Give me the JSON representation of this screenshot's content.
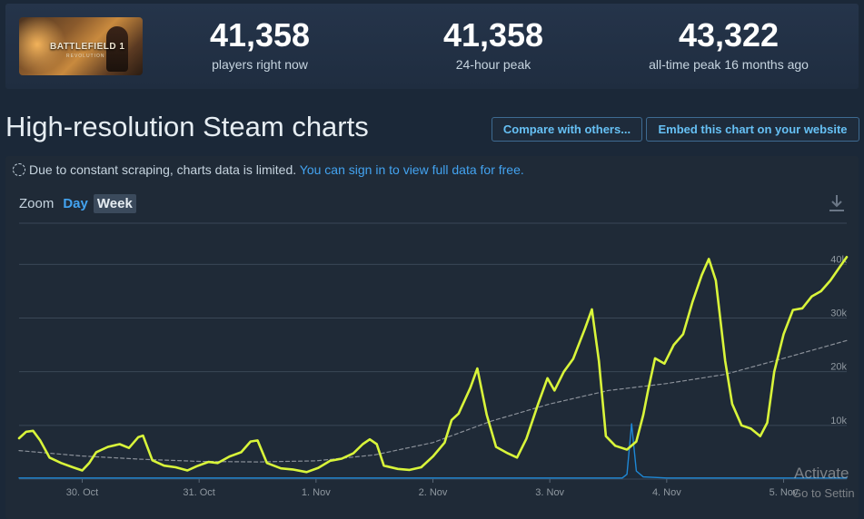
{
  "stats": {
    "thumbnail_logo": "BATTLEFIELD 1",
    "thumbnail_sub": "REVOLUTION",
    "current": {
      "value": "41,358",
      "label": "players right now"
    },
    "peak24": {
      "value": "41,358",
      "label": "24-hour peak"
    },
    "alltime": {
      "value": "43,322",
      "label": "all-time peak 16 months ago"
    }
  },
  "page_title": "High-resolution Steam charts",
  "buttons": {
    "compare": "Compare with others...",
    "embed": "Embed this chart on your website"
  },
  "notice": {
    "text": "Due to constant scraping, charts data is limited.",
    "link": "You can sign in to view full data for free."
  },
  "zoom": {
    "label": "Zoom",
    "day": "Day",
    "week": "Week"
  },
  "watermark": {
    "line1": "Activate",
    "line2": "Go to Settin"
  },
  "colors": {
    "players_line": "#d9f53a",
    "avg_line": "#8a9099",
    "spike_line": "#1e88d6",
    "accent": "#66c0f4"
  },
  "chart_data": {
    "type": "line",
    "ylim": [
      0,
      48000
    ],
    "yticks": [
      "10k",
      "20k",
      "30k",
      "40k"
    ],
    "ytick_values": [
      10000,
      20000,
      30000,
      40000
    ],
    "xticks": [
      "30. Oct",
      "31. Oct",
      "1. Nov",
      "2. Nov",
      "3. Nov",
      "4. Nov",
      "5. Nov"
    ],
    "xtick_days": [
      1,
      2,
      3,
      4,
      5,
      6,
      7
    ],
    "x_start_day": 0.46,
    "x_end_day": 7.54,
    "series": [
      {
        "key": "players",
        "points": [
          [
            0.46,
            7600
          ],
          [
            0.52,
            8800
          ],
          [
            0.58,
            9000
          ],
          [
            0.64,
            7200
          ],
          [
            0.72,
            4000
          ],
          [
            0.82,
            3000
          ],
          [
            0.92,
            2200
          ],
          [
            1.0,
            1600
          ],
          [
            1.06,
            3000
          ],
          [
            1.12,
            5000
          ],
          [
            1.22,
            6000
          ],
          [
            1.32,
            6500
          ],
          [
            1.4,
            5800
          ],
          [
            1.48,
            7800
          ],
          [
            1.52,
            8100
          ],
          [
            1.6,
            3500
          ],
          [
            1.7,
            2500
          ],
          [
            1.8,
            2200
          ],
          [
            1.9,
            1600
          ],
          [
            1.98,
            2400
          ],
          [
            2.08,
            3200
          ],
          [
            2.16,
            3000
          ],
          [
            2.26,
            4200
          ],
          [
            2.36,
            5000
          ],
          [
            2.44,
            7000
          ],
          [
            2.5,
            7200
          ],
          [
            2.58,
            3000
          ],
          [
            2.7,
            2000
          ],
          [
            2.8,
            1800
          ],
          [
            2.92,
            1300
          ],
          [
            3.02,
            2100
          ],
          [
            3.12,
            3400
          ],
          [
            3.22,
            3800
          ],
          [
            3.32,
            4800
          ],
          [
            3.4,
            6500
          ],
          [
            3.46,
            7400
          ],
          [
            3.52,
            6500
          ],
          [
            3.58,
            2500
          ],
          [
            3.7,
            1900
          ],
          [
            3.8,
            1700
          ],
          [
            3.9,
            2200
          ],
          [
            4.0,
            4200
          ],
          [
            4.1,
            6800
          ],
          [
            4.16,
            11000
          ],
          [
            4.22,
            12200
          ],
          [
            4.32,
            17000
          ],
          [
            4.38,
            20600
          ],
          [
            4.46,
            12000
          ],
          [
            4.54,
            6000
          ],
          [
            4.64,
            4800
          ],
          [
            4.72,
            4000
          ],
          [
            4.8,
            7500
          ],
          [
            4.9,
            14000
          ],
          [
            4.98,
            18800
          ],
          [
            5.04,
            16500
          ],
          [
            5.12,
            20000
          ],
          [
            5.2,
            22400
          ],
          [
            5.3,
            28000
          ],
          [
            5.36,
            31600
          ],
          [
            5.42,
            22000
          ],
          [
            5.48,
            8000
          ],
          [
            5.56,
            6200
          ],
          [
            5.66,
            5500
          ],
          [
            5.74,
            7000
          ],
          [
            5.8,
            12000
          ],
          [
            5.84,
            16500
          ],
          [
            5.9,
            22500
          ],
          [
            5.98,
            21500
          ],
          [
            6.06,
            25000
          ],
          [
            6.14,
            27000
          ],
          [
            6.22,
            33000
          ],
          [
            6.3,
            38000
          ],
          [
            6.36,
            41000
          ],
          [
            6.42,
            37000
          ],
          [
            6.5,
            22000
          ],
          [
            6.56,
            14000
          ],
          [
            6.64,
            10000
          ],
          [
            6.72,
            9400
          ],
          [
            6.8,
            8000
          ],
          [
            6.86,
            10500
          ],
          [
            6.92,
            20000
          ],
          [
            7.0,
            27000
          ],
          [
            7.08,
            31500
          ],
          [
            7.16,
            31800
          ],
          [
            7.24,
            34000
          ],
          [
            7.32,
            35000
          ],
          [
            7.4,
            37000
          ],
          [
            7.48,
            39500
          ],
          [
            7.54,
            41358
          ]
        ]
      },
      {
        "key": "average",
        "points": [
          [
            0.46,
            5300
          ],
          [
            1.0,
            4300
          ],
          [
            1.5,
            3700
          ],
          [
            2.0,
            3300
          ],
          [
            2.5,
            3200
          ],
          [
            3.0,
            3400
          ],
          [
            3.5,
            4500
          ],
          [
            4.0,
            6800
          ],
          [
            4.5,
            10800
          ],
          [
            5.0,
            14000
          ],
          [
            5.5,
            16500
          ],
          [
            6.0,
            17800
          ],
          [
            6.5,
            19500
          ],
          [
            7.0,
            22500
          ],
          [
            7.54,
            25800
          ]
        ]
      },
      {
        "key": "other",
        "points": [
          [
            0.46,
            200
          ],
          [
            5.62,
            200
          ],
          [
            5.66,
            900
          ],
          [
            5.7,
            10300
          ],
          [
            5.74,
            1500
          ],
          [
            5.8,
            400
          ],
          [
            6.0,
            200
          ],
          [
            7.54,
            200
          ]
        ]
      }
    ]
  }
}
